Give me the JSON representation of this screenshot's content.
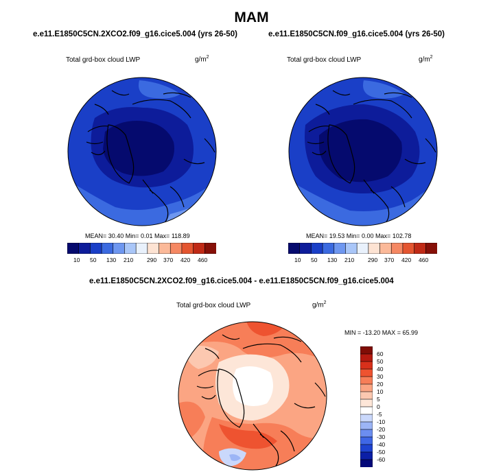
{
  "figure": {
    "title": "MAM",
    "colors": {
      "lwp": [
        "#050a6e",
        "#0d1c9a",
        "#1a3fc7",
        "#3b6ae0",
        "#6e97f0",
        "#a9c6f8",
        "#e9f1fc",
        "#fde3d3",
        "#fbb999",
        "#f58863",
        "#e45530",
        "#c02a16",
        "#861008"
      ],
      "diff": [
        "#04087a",
        "#0b1fa6",
        "#1e43d0",
        "#3f67e6",
        "#6c8ef0",
        "#9cb5f6",
        "#cad8fb",
        "#ffffff",
        "#fde6d8",
        "#fcc8b0",
        "#fba583",
        "#f77e58",
        "#ee5330",
        "#d8301b",
        "#b51a10",
        "#800d06"
      ]
    }
  },
  "panels": [
    {
      "case": "e.e11.E1850C5CN.2XCO2.f09_g16.cice5.004 (yrs 26-50)",
      "variable": "Total grd-box cloud LWP",
      "units_base": "g/m",
      "units_exp": "2",
      "stats": "MEAN=  30.40  Min=   0.01  Max= 118.89",
      "levels": [
        "10",
        "50",
        "130",
        "210",
        "290",
        "370",
        "420",
        "460"
      ]
    },
    {
      "case": "e.e11.E1850C5CN.f09_g16.cice5.004 (yrs 26-50)",
      "variable": "Total grd-box cloud LWP",
      "units_base": "g/m",
      "units_exp": "2",
      "stats": "MEAN=  19.53  Min=   0.00  Max= 102.78",
      "levels": [
        "10",
        "50",
        "130",
        "210",
        "290",
        "370",
        "420",
        "460"
      ]
    }
  ],
  "difference": {
    "case": "e.e11.E1850C5CN.2XCO2.f09_g16.cice5.004 - e.e11.E1850C5CN.f09_g16.cice5.004",
    "variable": "Total grd-box cloud LWP",
    "units_base": "g/m",
    "units_exp": "2",
    "stats": "MIN = -13.20 MAX =  65.99",
    "levels": [
      "60",
      "50",
      "40",
      "30",
      "20",
      "10",
      "5",
      "0",
      "-5",
      "-10",
      "-20",
      "-30",
      "-40",
      "-50",
      "-60"
    ]
  }
}
